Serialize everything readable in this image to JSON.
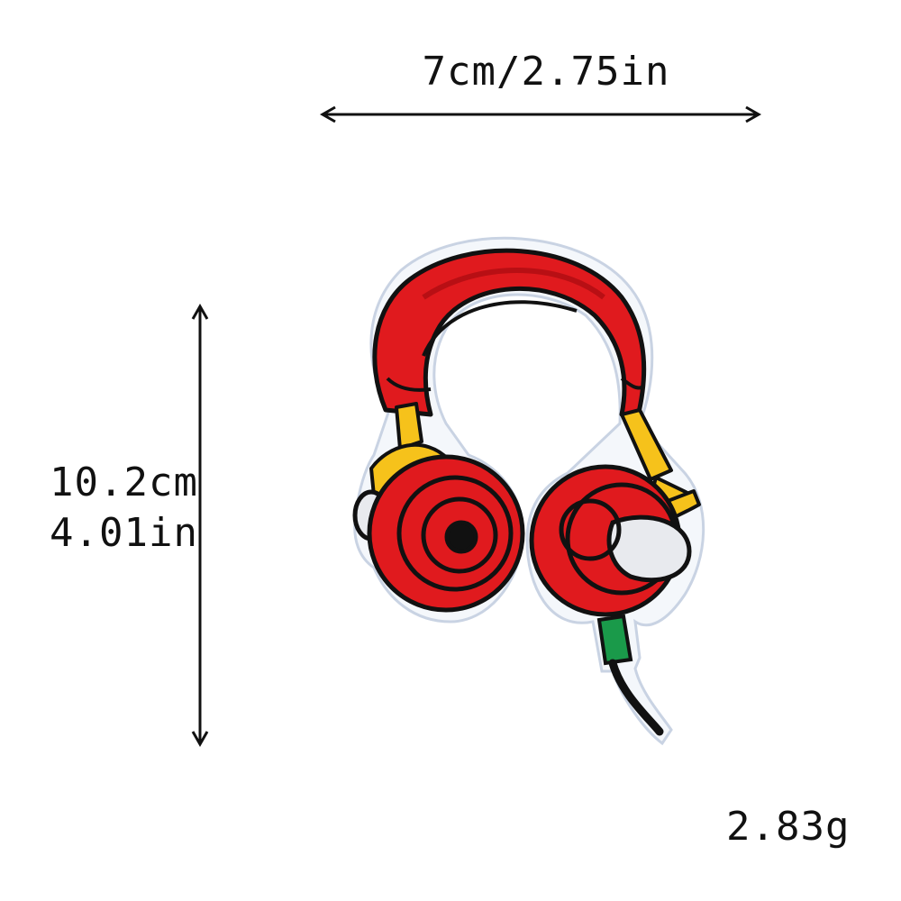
{
  "dimensions": {
    "width_text": "7cm/2.75in",
    "height_cm_text": "10.2cm",
    "height_in_text": "4.01in",
    "weight_text": "2.83g"
  },
  "product": {
    "icon": "headphones-patch",
    "colors": {
      "primary": "#e01a1e",
      "dark_red": "#b80f14",
      "accent_yellow": "#f6c21b",
      "jack_green": "#1a9a4a",
      "outline": "#111111",
      "border": "#f4f7fb",
      "silver": "#e8eaee"
    }
  }
}
